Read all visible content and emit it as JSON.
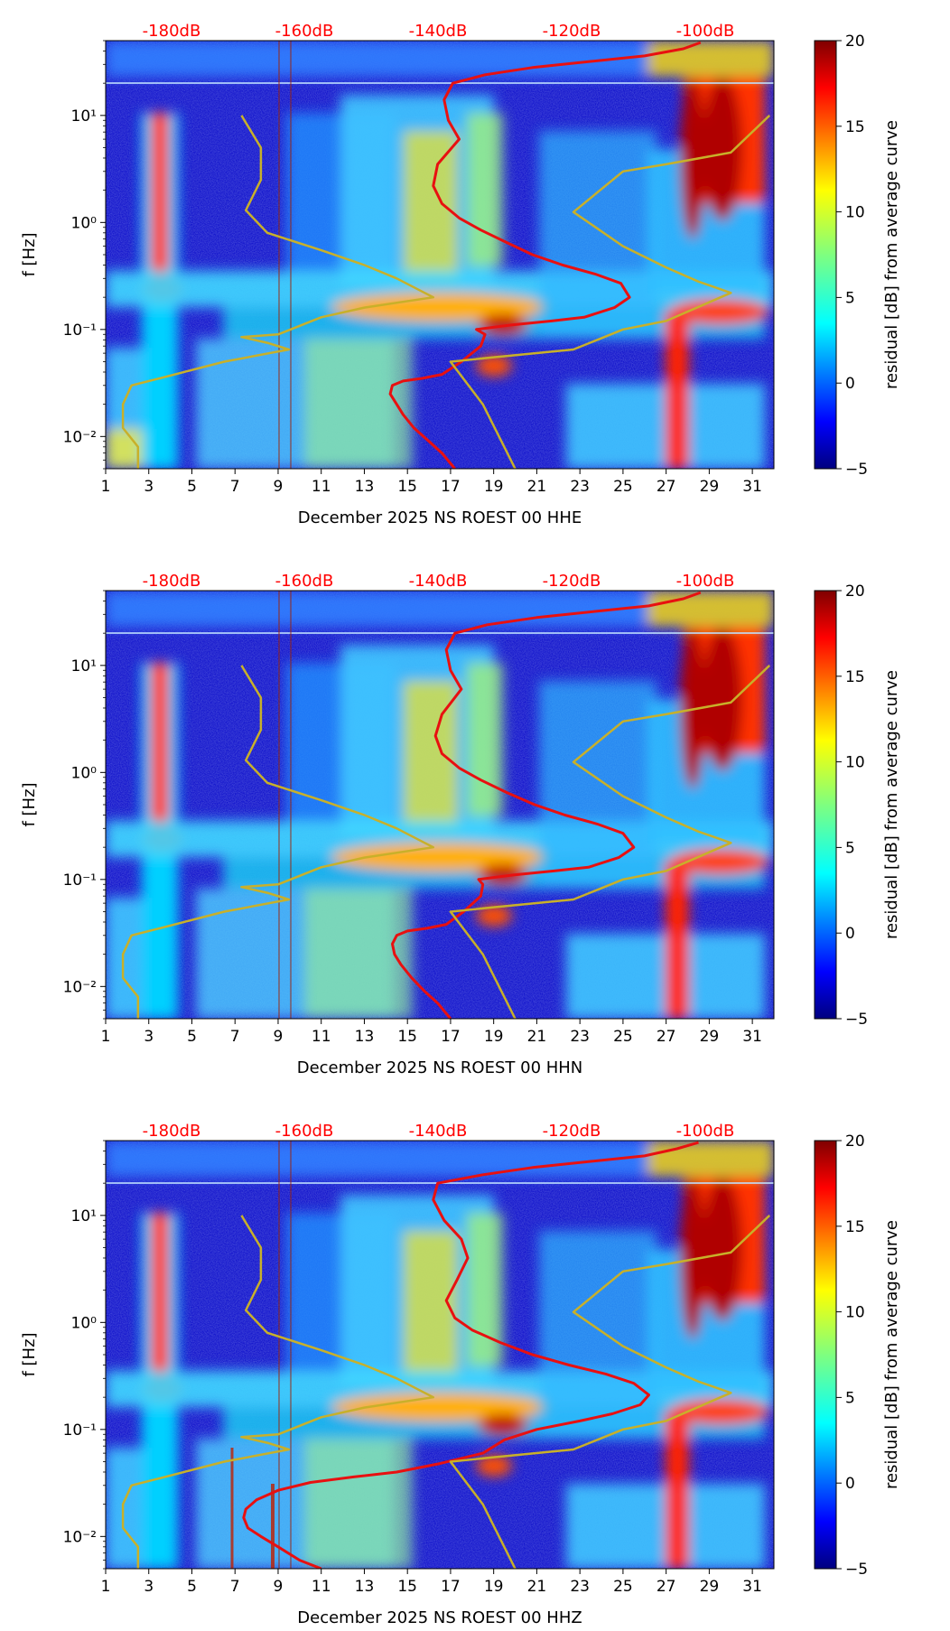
{
  "chart_data": [
    {
      "type": "heatmap",
      "xlabel": "December 2025 NS ROEST 00 HHE",
      "ylabel": "f [Hz]",
      "xticks": [
        "1",
        "3",
        "5",
        "7",
        "9",
        "11",
        "13",
        "15",
        "17",
        "19",
        "21",
        "23",
        "25",
        "27",
        "29",
        "31"
      ],
      "xlim": [
        1,
        32
      ],
      "yscale": "log",
      "ylim": [
        0.005,
        50
      ],
      "yticks": [
        0.01,
        0.1,
        1,
        10
      ],
      "ytick_labels": [
        "10⁻²",
        "10⁻¹",
        "10⁰",
        "10¹"
      ],
      "top_scale_labels": [
        "-180dB",
        "-160dB",
        "-140dB",
        "-120dB",
        "-100dB"
      ],
      "top_scale_color": "#ff0000",
      "colorbar": {
        "label": "residual [dB] from average curve",
        "min": -5,
        "max": 20,
        "ticks": [
          "−5",
          "0",
          "5",
          "10",
          "15",
          "20"
        ],
        "colormap": "jet"
      },
      "series": [
        {
          "color": "#e81010",
          "x": [
            17.2,
            16.6,
            16.0,
            15.3,
            14.8,
            14.5,
            14.2,
            14.3,
            14.8,
            15.7,
            16.6,
            17.5,
            18.4,
            18.6,
            18.2,
            19.8,
            21.7,
            23.2,
            24.6,
            25.3,
            24.9,
            23.7,
            22.2,
            20.8,
            19.6,
            18.4,
            17.4,
            16.6,
            16.2,
            16.4,
            17.4,
            16.9,
            16.7,
            17.1,
            18.6,
            20.8,
            23.5,
            26.0,
            27.8,
            28.6
          ],
          "y": [
            0.005,
            0.007,
            0.009,
            0.012,
            0.016,
            0.02,
            0.025,
            0.03,
            0.033,
            0.035,
            0.038,
            0.05,
            0.07,
            0.09,
            0.1,
            0.11,
            0.12,
            0.13,
            0.16,
            0.2,
            0.27,
            0.33,
            0.4,
            0.5,
            0.65,
            0.85,
            1.1,
            1.5,
            2.2,
            3.5,
            6,
            9,
            14,
            20,
            24,
            28,
            32,
            36,
            42,
            48
          ]
        },
        {
          "color": "#c8b02a",
          "x": [
            20.0,
            18.5,
            17.0,
            19.0,
            22.7,
            25.0,
            27.0,
            30.0,
            28.5,
            27.0,
            25.0,
            22.7,
            25.0,
            27.0,
            30.0,
            31.8
          ],
          "y": [
            0.005,
            0.02,
            0.05,
            0.055,
            0.065,
            0.1,
            0.12,
            0.22,
            0.28,
            0.38,
            0.6,
            1.25,
            3,
            3.5,
            4.5,
            10
          ]
        },
        {
          "color": "#c8b02a",
          "x": [
            2.5,
            2.5,
            1.8,
            1.8,
            2.2,
            3.5,
            6.5,
            9.5,
            8.5,
            7.3,
            9.0,
            11.0,
            13.0,
            16.2,
            14.5,
            13.0,
            11.0,
            8.5,
            7.5,
            8.2,
            8.2,
            7.3
          ],
          "y": [
            0.005,
            0.008,
            0.012,
            0.02,
            0.03,
            0.035,
            0.05,
            0.065,
            0.075,
            0.085,
            0.09,
            0.13,
            0.16,
            0.2,
            0.3,
            0.4,
            0.55,
            0.8,
            1.3,
            2.5,
            5,
            10
          ]
        }
      ]
    },
    {
      "type": "heatmap",
      "xlabel": "December 2025 NS ROEST 00 HHN",
      "ylabel": "f [Hz]",
      "xticks": [
        "1",
        "3",
        "5",
        "7",
        "9",
        "11",
        "13",
        "15",
        "17",
        "19",
        "21",
        "23",
        "25",
        "27",
        "29",
        "31"
      ],
      "xlim": [
        1,
        32
      ],
      "yscale": "log",
      "ylim": [
        0.005,
        50
      ],
      "yticks": [
        0.01,
        0.1,
        1,
        10
      ],
      "ytick_labels": [
        "10⁻²",
        "10⁻¹",
        "10⁰",
        "10¹"
      ],
      "top_scale_labels": [
        "-180dB",
        "-160dB",
        "-140dB",
        "-120dB",
        "-100dB"
      ],
      "top_scale_color": "#ff0000",
      "colorbar": {
        "label": "residual [dB] from average curve",
        "min": -5,
        "max": 20,
        "ticks": [
          "−5",
          "0",
          "5",
          "10",
          "15",
          "20"
        ],
        "colormap": "jet"
      },
      "series": [
        {
          "color": "#e81010",
          "x": [
            17.0,
            16.4,
            15.8,
            15.2,
            14.7,
            14.4,
            14.3,
            14.5,
            15.0,
            15.9,
            16.8,
            17.6,
            18.4,
            18.5,
            18.3,
            19.9,
            21.8,
            23.4,
            24.8,
            25.5,
            25.0,
            23.8,
            22.3,
            20.9,
            19.6,
            18.4,
            17.4,
            16.6,
            16.3,
            16.6,
            17.5,
            17.0,
            16.8,
            17.2,
            18.7,
            21.0,
            23.7,
            26.2,
            27.8,
            28.6
          ],
          "y": [
            0.005,
            0.007,
            0.009,
            0.012,
            0.016,
            0.02,
            0.025,
            0.03,
            0.033,
            0.035,
            0.038,
            0.05,
            0.07,
            0.09,
            0.1,
            0.11,
            0.12,
            0.13,
            0.16,
            0.2,
            0.27,
            0.33,
            0.4,
            0.5,
            0.65,
            0.85,
            1.1,
            1.5,
            2.2,
            3.5,
            6,
            9,
            14,
            20,
            24,
            28,
            32,
            36,
            42,
            48
          ]
        },
        {
          "color": "#c8b02a",
          "x": [
            20.0,
            18.5,
            17.0,
            19.0,
            22.7,
            25.0,
            27.0,
            30.0,
            28.5,
            27.0,
            25.0,
            22.7,
            25.0,
            27.0,
            30.0,
            31.8
          ],
          "y": [
            0.005,
            0.02,
            0.05,
            0.055,
            0.065,
            0.1,
            0.12,
            0.22,
            0.28,
            0.38,
            0.6,
            1.25,
            3,
            3.5,
            4.5,
            10
          ]
        },
        {
          "color": "#c8b02a",
          "x": [
            2.5,
            2.5,
            1.8,
            1.8,
            2.2,
            3.5,
            6.5,
            9.5,
            8.5,
            7.3,
            9.0,
            11.0,
            13.0,
            16.2,
            14.5,
            13.0,
            11.0,
            8.5,
            7.5,
            8.2,
            8.2,
            7.3
          ],
          "y": [
            0.005,
            0.008,
            0.012,
            0.02,
            0.03,
            0.035,
            0.05,
            0.065,
            0.075,
            0.085,
            0.09,
            0.13,
            0.16,
            0.2,
            0.3,
            0.4,
            0.55,
            0.8,
            1.3,
            2.5,
            5,
            10
          ]
        }
      ]
    },
    {
      "type": "heatmap",
      "xlabel": "December 2025 NS ROEST 00 HHZ",
      "ylabel": "f [Hz]",
      "xticks": [
        "1",
        "3",
        "5",
        "7",
        "9",
        "11",
        "13",
        "15",
        "17",
        "19",
        "21",
        "23",
        "25",
        "27",
        "29",
        "31"
      ],
      "xlim": [
        1,
        32
      ],
      "yscale": "log",
      "ylim": [
        0.005,
        50
      ],
      "yticks": [
        0.01,
        0.1,
        1,
        10
      ],
      "ytick_labels": [
        "10⁻²",
        "10⁻¹",
        "10⁰",
        "10¹"
      ],
      "top_scale_labels": [
        "-180dB",
        "-160dB",
        "-140dB",
        "-120dB",
        "-100dB"
      ],
      "top_scale_color": "#ff0000",
      "colorbar": {
        "label": "residual [dB] from average curve",
        "min": -5,
        "max": 20,
        "ticks": [
          "−5",
          "0",
          "5",
          "10",
          "15",
          "20"
        ],
        "colormap": "jet"
      },
      "series": [
        {
          "color": "#e81010",
          "x": [
            11.0,
            10.0,
            9.0,
            8.2,
            7.6,
            7.4,
            7.5,
            8.0,
            9.0,
            10.5,
            12.5,
            14.5,
            16.5,
            18.5,
            19.5,
            21.0,
            23.0,
            24.5,
            25.8,
            26.2,
            25.5,
            24.2,
            22.5,
            20.8,
            19.3,
            18.0,
            17.2,
            16.8,
            17.3,
            17.8,
            17.5,
            16.7,
            16.2,
            16.4,
            18.5,
            20.8,
            23.5,
            26.0,
            27.5,
            28.5
          ],
          "y": [
            0.005,
            0.006,
            0.008,
            0.01,
            0.012,
            0.015,
            0.018,
            0.022,
            0.027,
            0.032,
            0.036,
            0.04,
            0.048,
            0.06,
            0.08,
            0.1,
            0.12,
            0.14,
            0.17,
            0.21,
            0.27,
            0.33,
            0.4,
            0.5,
            0.65,
            0.85,
            1.1,
            1.6,
            2.5,
            4,
            6,
            9,
            14,
            20,
            24,
            28,
            32,
            36,
            42,
            48
          ]
        },
        {
          "color": "#c8b02a",
          "x": [
            20.0,
            18.5,
            17.0,
            19.0,
            22.7,
            25.0,
            27.0,
            30.0,
            28.5,
            27.0,
            25.0,
            22.7,
            25.0,
            27.0,
            30.0,
            31.8
          ],
          "y": [
            0.005,
            0.02,
            0.05,
            0.055,
            0.065,
            0.1,
            0.12,
            0.22,
            0.28,
            0.38,
            0.6,
            1.25,
            3,
            3.5,
            4.5,
            10
          ]
        },
        {
          "color": "#c8b02a",
          "x": [
            2.5,
            2.5,
            1.8,
            1.8,
            2.2,
            3.5,
            6.5,
            9.5,
            8.5,
            7.3,
            9.0,
            11.0,
            13.0,
            16.2,
            14.5,
            13.0,
            11.0,
            8.5,
            7.5,
            8.2,
            8.2,
            7.3
          ],
          "y": [
            0.005,
            0.008,
            0.012,
            0.02,
            0.03,
            0.035,
            0.05,
            0.065,
            0.075,
            0.085,
            0.09,
            0.13,
            0.16,
            0.2,
            0.3,
            0.4,
            0.55,
            0.8,
            1.3,
            2.5,
            5,
            10
          ]
        }
      ]
    }
  ]
}
